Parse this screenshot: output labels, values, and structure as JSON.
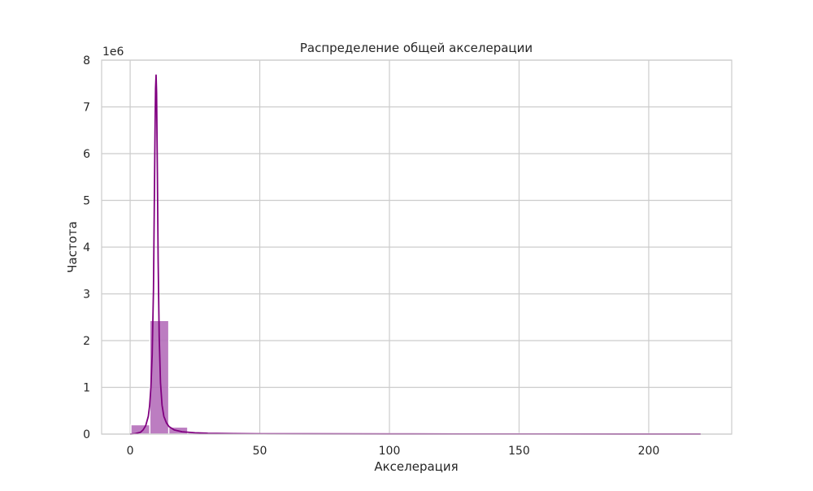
{
  "chart_data": {
    "type": "bar",
    "title": "Распределение общей акселерации",
    "xlabel": "Акселерация",
    "ylabel": "Частота",
    "y_offset_text": "1e6",
    "y_scale_factor": 1000000,
    "xlim": [
      -11,
      232
    ],
    "ylim": [
      0,
      8000000
    ],
    "x_ticks": [
      0,
      50,
      100,
      150,
      200
    ],
    "x_tick_labels": [
      "0",
      "50",
      "100",
      "150",
      "200"
    ],
    "y_ticks": [
      0,
      1000000,
      2000000,
      3000000,
      4000000,
      5000000,
      6000000,
      7000000,
      8000000
    ],
    "y_tick_labels": [
      "0",
      "1",
      "2",
      "3",
      "4",
      "5",
      "6",
      "7",
      "8"
    ],
    "grid": true,
    "colors": {
      "bar_fill": "#b36bb8",
      "kde_line": "#800080"
    },
    "histogram": {
      "bins": [
        {
          "x0": 0.3,
          "x1": 7.6,
          "count": 200000
        },
        {
          "x0": 7.6,
          "x1": 14.9,
          "count": 2430000
        },
        {
          "x0": 14.9,
          "x1": 22.2,
          "count": 150000
        },
        {
          "x0": 22.2,
          "x1": 29.5,
          "count": 30000
        },
        {
          "x0": 29.5,
          "x1": 36.8,
          "count": 15000
        },
        {
          "x0": 36.8,
          "x1": 44.1,
          "count": 10000
        },
        {
          "x0": 44.1,
          "x1": 51.4,
          "count": 8000
        },
        {
          "x0": 51.4,
          "x1": 58.7,
          "count": 6000
        },
        {
          "x0": 58.7,
          "x1": 66.0,
          "count": 5000
        },
        {
          "x0": 66.0,
          "x1": 73.3,
          "count": 4000
        },
        {
          "x0": 73.3,
          "x1": 80.6,
          "count": 3500
        },
        {
          "x0": 80.6,
          "x1": 87.9,
          "count": 3000
        },
        {
          "x0": 87.9,
          "x1": 95.2,
          "count": 3000
        },
        {
          "x0": 95.2,
          "x1": 102.5,
          "count": 2500
        },
        {
          "x0": 102.5,
          "x1": 109.8,
          "count": 2000
        },
        {
          "x0": 109.8,
          "x1": 117.1,
          "count": 2000
        },
        {
          "x0": 117.1,
          "x1": 124.4,
          "count": 1800
        },
        {
          "x0": 124.4,
          "x1": 131.7,
          "count": 1500
        },
        {
          "x0": 131.7,
          "x1": 139.0,
          "count": 1500
        },
        {
          "x0": 139.0,
          "x1": 146.3,
          "count": 1200
        },
        {
          "x0": 146.3,
          "x1": 153.6,
          "count": 1200
        },
        {
          "x0": 153.6,
          "x1": 160.9,
          "count": 1000
        },
        {
          "x0": 160.9,
          "x1": 168.2,
          "count": 1000
        },
        {
          "x0": 168.2,
          "x1": 175.5,
          "count": 900
        },
        {
          "x0": 175.5,
          "x1": 182.8,
          "count": 800
        },
        {
          "x0": 182.8,
          "x1": 190.1,
          "count": 800
        },
        {
          "x0": 190.1,
          "x1": 197.4,
          "count": 700
        },
        {
          "x0": 197.4,
          "x1": 204.7,
          "count": 700
        },
        {
          "x0": 204.7,
          "x1": 212.0,
          "count": 600
        },
        {
          "x0": 212.0,
          "x1": 219.3,
          "count": 600
        }
      ]
    },
    "kde": {
      "x": [
        0,
        2,
        4,
        5,
        6,
        7,
        7.5,
        8,
        8.5,
        9,
        9.3,
        9.6,
        9.8,
        10,
        10.2,
        10.5,
        10.8,
        11.2,
        11.7,
        12.3,
        13,
        14,
        15,
        17,
        20,
        25,
        30,
        40,
        50,
        70,
        100,
        130,
        160,
        190,
        220
      ],
      "y": [
        0,
        10000,
        40000,
        90000,
        180000,
        380000,
        600000,
        1000000,
        1700000,
        3100000,
        4800000,
        6500000,
        7400000,
        7680000,
        7300000,
        5600000,
        3700000,
        2100000,
        1100000,
        620000,
        380000,
        240000,
        160000,
        90000,
        50000,
        28000,
        18000,
        10000,
        7000,
        5000,
        3500,
        2500,
        1800,
        1200,
        800
      ]
    }
  }
}
